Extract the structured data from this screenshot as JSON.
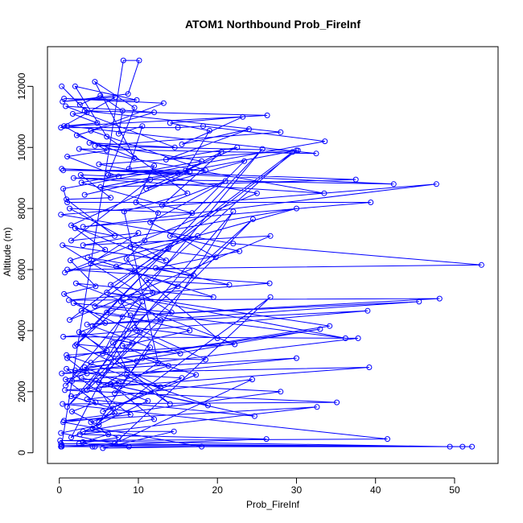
{
  "chart_data": {
    "type": "line",
    "title": "ATOM1 Northbound Prob_FireInf",
    "xlabel": "Prob_FireInf",
    "ylabel": "Altitude (m)",
    "xlim": [
      -1.5,
      55.5
    ],
    "ylim": [
      -350,
      13300
    ],
    "x_ticks": [
      0,
      10,
      20,
      30,
      40,
      50
    ],
    "y_ticks": [
      0,
      2000,
      4000,
      6000,
      8000,
      10000,
      12000
    ],
    "grid": false,
    "legend": "none",
    "series": [
      {
        "marker": "open-circle",
        "line": true,
        "points": [
          [
            0.2,
            200
          ],
          [
            4.2,
            200
          ],
          [
            52.2,
            200
          ],
          [
            0.3,
            250
          ],
          [
            8.1,
            12850
          ],
          [
            10.1,
            12850
          ],
          [
            8.7,
            11750
          ],
          [
            0.4,
            11500
          ],
          [
            7.1,
            11650
          ],
          [
            0.2,
            10650
          ],
          [
            15.0,
            10650
          ],
          [
            18.2,
            10700
          ],
          [
            33.6,
            10200
          ],
          [
            0.5,
            8650
          ],
          [
            1.0,
            8200
          ],
          [
            39.4,
            8200
          ],
          [
            3.0,
            7400
          ],
          [
            47.7,
            8800
          ],
          [
            0.2,
            7800
          ],
          [
            22.0,
            6850
          ],
          [
            53.4,
            6150
          ],
          [
            1.0,
            6000
          ],
          [
            26.6,
            5550
          ],
          [
            1.2,
            5000
          ],
          [
            48.1,
            5050
          ],
          [
            9.0,
            4500
          ],
          [
            45.5,
            4950
          ],
          [
            3.5,
            4200
          ],
          [
            39.0,
            4650
          ],
          [
            0.5,
            3800
          ],
          [
            37.8,
            3750
          ],
          [
            0.3,
            2600
          ],
          [
            39.2,
            2800
          ],
          [
            0.7,
            2050
          ],
          [
            35.1,
            1650
          ],
          [
            0.4,
            1600
          ],
          [
            41.5,
            450
          ],
          [
            0.1,
            400
          ],
          [
            49.4,
            200
          ],
          [
            0.2,
            300
          ],
          [
            51.0,
            200
          ],
          [
            0.3,
            200
          ],
          [
            26.2,
            450
          ],
          [
            2.6,
            600
          ],
          [
            32.6,
            1500
          ],
          [
            0.6,
            1050
          ],
          [
            28.0,
            2000
          ],
          [
            1.6,
            2350
          ],
          [
            30.0,
            3100
          ],
          [
            2.0,
            2700
          ],
          [
            33.0,
            4050
          ],
          [
            4.0,
            2950
          ],
          [
            34.2,
            4150
          ],
          [
            6.0,
            5250
          ],
          [
            36.2,
            3750
          ],
          [
            4.5,
            4800
          ],
          [
            30.0,
            9900
          ],
          [
            5.2,
            8700
          ],
          [
            37.5,
            8950
          ],
          [
            0.3,
            9300
          ],
          [
            42.3,
            8800
          ],
          [
            1.8,
            9000
          ],
          [
            33.5,
            8500
          ],
          [
            2.5,
            9950
          ],
          [
            32.5,
            9800
          ],
          [
            1.0,
            10700
          ],
          [
            26.3,
            11050
          ],
          [
            3.2,
            11200
          ],
          [
            28.0,
            10500
          ],
          [
            4.5,
            10050
          ],
          [
            30.2,
            9900
          ],
          [
            5.0,
            9450
          ],
          [
            25.0,
            8500
          ],
          [
            0.7,
            5900
          ],
          [
            30.0,
            8000
          ],
          [
            3.0,
            6800
          ],
          [
            26.7,
            7100
          ],
          [
            1.3,
            4350
          ],
          [
            29.5,
            9850
          ],
          [
            2.0,
            3500
          ],
          [
            25.7,
            9950
          ],
          [
            0.8,
            2200
          ],
          [
            24.5,
            7650
          ],
          [
            1.0,
            1500
          ],
          [
            22.0,
            7900
          ],
          [
            5.0,
            1000
          ],
          [
            26.7,
            5100
          ],
          [
            7.0,
            300
          ],
          [
            24.4,
            2400
          ],
          [
            3.5,
            1750
          ],
          [
            24.7,
            1200
          ],
          [
            2.8,
            2450
          ],
          [
            18.8,
            1550
          ],
          [
            0.9,
            3200
          ],
          [
            22.2,
            3550
          ],
          [
            2.1,
            5550
          ],
          [
            19.5,
            5100
          ],
          [
            3.6,
            6400
          ],
          [
            17.0,
            5800
          ],
          [
            1.5,
            7450
          ],
          [
            16.5,
            9200
          ],
          [
            0.5,
            9250
          ],
          [
            18.5,
            9250
          ],
          [
            4.0,
            10550
          ],
          [
            13.2,
            11450
          ],
          [
            0.6,
            11600
          ],
          [
            9.8,
            11550
          ],
          [
            2.0,
            12000
          ],
          [
            6.0,
            10350
          ],
          [
            16.2,
            8500
          ],
          [
            8.2,
            7900
          ],
          [
            12.5,
            2950
          ],
          [
            7.0,
            1950
          ],
          [
            11.5,
            3450
          ],
          [
            4.2,
            4150
          ],
          [
            13.8,
            6700
          ],
          [
            6.5,
            5500
          ],
          [
            12.8,
            4350
          ],
          [
            3.5,
            2050
          ],
          [
            10.5,
            4950
          ],
          [
            1.5,
            500
          ],
          [
            11.2,
            1700
          ],
          [
            5.0,
            2300
          ],
          [
            9.2,
            3600
          ],
          [
            3.0,
            3900
          ],
          [
            14.0,
            1600
          ],
          [
            8.5,
            2550
          ],
          [
            15.5,
            2450
          ],
          [
            5.5,
            1350
          ],
          [
            17.3,
            2550
          ],
          [
            10.5,
            3100
          ],
          [
            18.5,
            3050
          ],
          [
            9.5,
            4100
          ],
          [
            20.0,
            3750
          ],
          [
            11.0,
            5650
          ],
          [
            21.5,
            5500
          ],
          [
            12.2,
            6050
          ],
          [
            22.8,
            6600
          ],
          [
            14.0,
            7100
          ],
          [
            23.4,
            9550
          ],
          [
            11.0,
            8650
          ],
          [
            22.5,
            10000
          ],
          [
            13.5,
            9600
          ],
          [
            24.0,
            10600
          ],
          [
            15.5,
            10100
          ],
          [
            23.2,
            11000
          ],
          [
            14.0,
            10800
          ],
          [
            19.0,
            10550
          ],
          [
            16.0,
            9250
          ],
          [
            20.5,
            9850
          ],
          [
            13.0,
            8100
          ],
          [
            21.0,
            8900
          ],
          [
            11.5,
            7550
          ],
          [
            19.8,
            6400
          ],
          [
            9.0,
            6750
          ],
          [
            17.5,
            7100
          ],
          [
            7.2,
            6100
          ],
          [
            15.0,
            5450
          ],
          [
            6.0,
            4600
          ],
          [
            16.5,
            4000
          ],
          [
            8.0,
            3500
          ],
          [
            13.8,
            2850
          ],
          [
            6.5,
            2250
          ],
          [
            12.0,
            1100
          ],
          [
            3.0,
            700
          ],
          [
            14.5,
            700
          ],
          [
            5.5,
            150
          ],
          [
            18.0,
            200
          ],
          [
            0.5,
            1000
          ],
          [
            9.0,
            1250
          ],
          [
            0.9,
            2750
          ],
          [
            12.8,
            2150
          ],
          [
            2.2,
            3550
          ],
          [
            15.3,
            3250
          ],
          [
            1.8,
            4900
          ],
          [
            14.2,
            4600
          ],
          [
            0.4,
            6800
          ],
          [
            13.5,
            6300
          ],
          [
            1.3,
            8000
          ],
          [
            16.8,
            7850
          ],
          [
            2.8,
            8850
          ],
          [
            18.0,
            9550
          ],
          [
            3.8,
            10150
          ],
          [
            14.6,
            10000
          ],
          [
            0.8,
            11350
          ],
          [
            12.0,
            11150
          ],
          [
            2.2,
            10400
          ],
          [
            9.5,
            9650
          ],
          [
            4.5,
            12150
          ],
          [
            9.5,
            11300
          ],
          [
            6.2,
            9100
          ],
          [
            15.0,
            9150
          ],
          [
            3.2,
            8450
          ],
          [
            11.5,
            8950
          ],
          [
            1.5,
            6950
          ],
          [
            10.0,
            7200
          ],
          [
            4.0,
            6200
          ],
          [
            9.5,
            5950
          ],
          [
            2.8,
            4650
          ],
          [
            8.0,
            4450
          ],
          [
            5.5,
            3250
          ],
          [
            9.8,
            3000
          ],
          [
            3.2,
            2800
          ],
          [
            7.5,
            2300
          ],
          [
            1.5,
            1850
          ],
          [
            6.8,
            1450
          ],
          [
            4.2,
            800
          ],
          [
            7.5,
            500
          ],
          [
            2.5,
            300
          ],
          [
            8.8,
            200
          ],
          [
            0.2,
            650
          ],
          [
            5.0,
            900
          ],
          [
            1.6,
            1350
          ],
          [
            4.6,
            1650
          ],
          [
            0.8,
            2400
          ],
          [
            3.5,
            2600
          ],
          [
            1.0,
            3100
          ],
          [
            6.0,
            3350
          ],
          [
            2.5,
            3950
          ],
          [
            5.8,
            4250
          ],
          [
            0.6,
            5200
          ],
          [
            4.6,
            5450
          ],
          [
            1.4,
            6300
          ],
          [
            5.8,
            6650
          ],
          [
            2.0,
            7350
          ],
          [
            7.0,
            7100
          ],
          [
            0.9,
            8300
          ],
          [
            6.5,
            8350
          ],
          [
            2.7,
            9100
          ],
          [
            7.5,
            9050
          ],
          [
            1.0,
            9700
          ],
          [
            6.0,
            9900
          ],
          [
            0.6,
            10700
          ],
          [
            4.8,
            10800
          ],
          [
            1.7,
            11100
          ],
          [
            3.5,
            11150
          ],
          [
            0.3,
            12000
          ],
          [
            2.6,
            11400
          ],
          [
            5.2,
            11700
          ],
          [
            8.0,
            11200
          ],
          [
            7.5,
            10450
          ],
          [
            10.5,
            10700
          ],
          [
            8.8,
            9300
          ],
          [
            12.0,
            9400
          ],
          [
            9.7,
            8200
          ],
          [
            12.5,
            7850
          ],
          [
            10.8,
            6950
          ],
          [
            8.5,
            6350
          ],
          [
            11.8,
            5250
          ],
          [
            7.8,
            4950
          ],
          [
            10.2,
            3950
          ],
          [
            6.8,
            3600
          ],
          [
            8.6,
            2700
          ],
          [
            5.0,
            2100
          ],
          [
            7.0,
            1300
          ],
          [
            4.0,
            1000
          ],
          [
            6.2,
            600
          ],
          [
            3.0,
            350
          ],
          [
            4.5,
            200
          ]
        ]
      }
    ]
  },
  "colors": {
    "series": "#0000ff",
    "axis": "#000000",
    "background": "#ffffff"
  }
}
